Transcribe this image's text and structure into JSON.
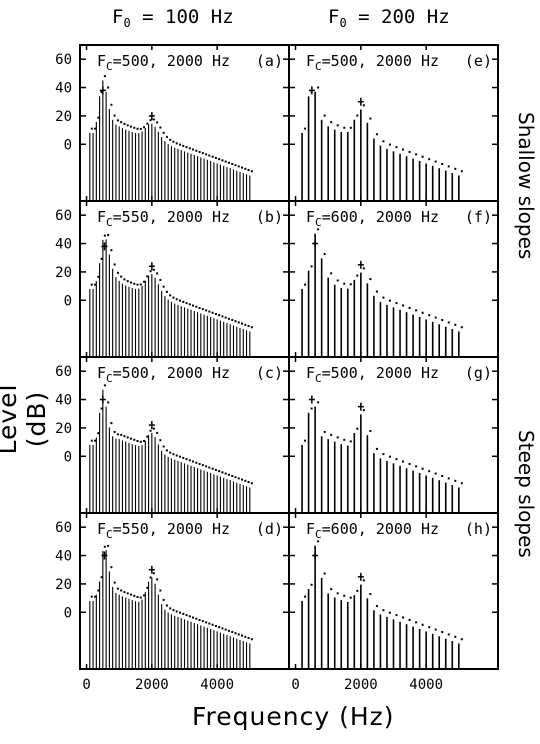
{
  "column_headers": [
    {
      "main": "F",
      "sub": "0",
      "rest": " = 100 Hz"
    },
    {
      "main": "F",
      "sub": "0",
      "rest": " = 200 Hz"
    }
  ],
  "row_group_labels": [
    "Shallow slopes",
    "Steep slopes"
  ],
  "chart_data": {
    "type": "bar",
    "layout": "grid 4 rows x 2 columns, vertical-line spectra with dotted envelope",
    "xlabel": "Frequency (Hz)",
    "ylabel": "Level (dB)",
    "xlim": [
      -200,
      6200
    ],
    "ylim": [
      -40,
      70
    ],
    "xticks": [
      0,
      2000,
      4000
    ],
    "yticks": [
      0,
      20,
      40,
      60
    ],
    "panels": [
      {
        "label": "(a)",
        "title": {
          "main": "F",
          "sub": "C",
          "rest": "=500, 2000 Hz"
        },
        "f0": 100,
        "f1": 500,
        "f2": 2000,
        "peak1": 38,
        "peak2": 20,
        "slope": "shallow"
      },
      {
        "label": "(e)",
        "title": {
          "main": "F",
          "sub": "C",
          "rest": "=500, 2000 Hz"
        },
        "f0": 200,
        "f1": 500,
        "f2": 2000,
        "peak1": 38,
        "peak2": 30,
        "slope": "shallow"
      },
      {
        "label": "(b)",
        "title": {
          "main": "F",
          "sub": "C",
          "rest": "=550, 2000 Hz"
        },
        "f0": 100,
        "f1": 550,
        "f2": 2000,
        "peak1": 38,
        "peak2": 24,
        "slope": "shallow"
      },
      {
        "label": "(f)",
        "title": {
          "main": "F",
          "sub": "C",
          "rest": "=600, 2000 Hz"
        },
        "f0": 200,
        "f1": 600,
        "f2": 2000,
        "peak1": 40,
        "peak2": 25,
        "slope": "shallow"
      },
      {
        "label": "(c)",
        "title": {
          "main": "F",
          "sub": "C",
          "rest": "=500, 2000 Hz"
        },
        "f0": 100,
        "f1": 500,
        "f2": 2000,
        "peak1": 40,
        "peak2": 22,
        "slope": "steep"
      },
      {
        "label": "(g)",
        "title": {
          "main": "F",
          "sub": "C",
          "rest": "=500, 2000 Hz"
        },
        "f0": 200,
        "f1": 500,
        "f2": 2000,
        "peak1": 40,
        "peak2": 35,
        "slope": "steep"
      },
      {
        "label": "(d)",
        "title": {
          "main": "F",
          "sub": "C",
          "rest": "=550, 2000 Hz"
        },
        "f0": 100,
        "f1": 550,
        "f2": 2000,
        "peak1": 40,
        "peak2": 30,
        "slope": "steep"
      },
      {
        "label": "(h)",
        "title": {
          "main": "F",
          "sub": "C",
          "rest": "=600, 2000 Hz"
        },
        "f0": 200,
        "f1": 600,
        "f2": 2000,
        "peak1": 40,
        "peak2": 25,
        "slope": "steep"
      }
    ]
  }
}
